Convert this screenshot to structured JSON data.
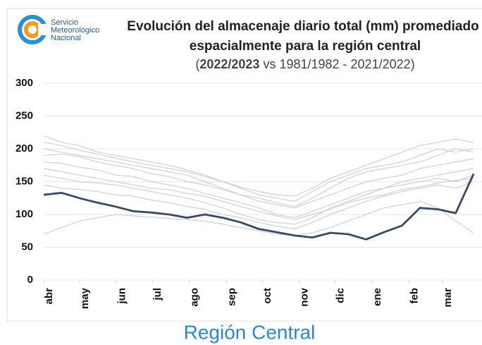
{
  "logo": [
    "Servicio",
    "Meteorológico",
    "Nacional"
  ],
  "footer": "Región Central",
  "chart_data": {
    "type": "line",
    "title": [
      "Evolución del almacenaje diario total (mm) promediado",
      "espacialmente para la región central"
    ],
    "subtitle": [
      "(",
      "2022/2023",
      " vs 1981/1982 - 2021/2022)"
    ],
    "x": [
      0,
      15,
      30,
      45,
      60,
      75,
      90,
      105,
      120,
      135,
      150,
      165,
      180,
      195,
      210,
      225,
      240,
      255,
      270,
      285,
      300,
      315,
      330,
      345,
      360
    ],
    "xlim": [
      0,
      367
    ],
    "xticks": [
      {
        "value": 0,
        "label": "abr"
      },
      {
        "value": 30,
        "label": "may"
      },
      {
        "value": 61,
        "label": "jun"
      },
      {
        "value": 91,
        "label": "jul"
      },
      {
        "value": 122,
        "label": "ago"
      },
      {
        "value": 153,
        "label": "sep"
      },
      {
        "value": 183,
        "label": "oct"
      },
      {
        "value": 214,
        "label": "nov"
      },
      {
        "value": 244,
        "label": "dic"
      },
      {
        "value": 275,
        "label": "ene"
      },
      {
        "value": 306,
        "label": "feb"
      },
      {
        "value": 334,
        "label": "mar"
      }
    ],
    "ylim": [
      0,
      300
    ],
    "yticks": [
      0,
      50,
      100,
      150,
      200,
      250,
      300
    ],
    "grid": true,
    "series": [
      {
        "color": "#d0d0d0",
        "values": [
          200,
          195,
          190,
          185,
          180,
          175,
          170,
          165,
          160,
          150,
          140,
          130,
          120,
          115,
          110,
          120,
          130,
          140,
          150,
          155,
          160,
          170,
          175,
          180,
          185
        ]
      },
      {
        "color": "#d0d0d0",
        "values": [
          180,
          178,
          172,
          168,
          160,
          158,
          150,
          145,
          140,
          132,
          125,
          118,
          110,
          100,
          95,
          105,
          115,
          125,
          135,
          140,
          150,
          155,
          160,
          165,
          170
        ]
      },
      {
        "color": "#d0d0d0",
        "values": [
          220,
          210,
          205,
          195,
          190,
          185,
          180,
          175,
          168,
          160,
          150,
          140,
          130,
          125,
          120,
          135,
          150,
          160,
          170,
          175,
          180,
          190,
          200,
          195,
          200
        ]
      },
      {
        "color": "#d0d0d0",
        "values": [
          160,
          155,
          150,
          148,
          145,
          140,
          135,
          130,
          125,
          118,
          110,
          100,
          92,
          88,
          85,
          95,
          110,
          120,
          130,
          140,
          145,
          150,
          155,
          150,
          160
        ]
      },
      {
        "color": "#d0d0d0",
        "values": [
          190,
          192,
          188,
          180,
          175,
          170,
          162,
          158,
          150,
          145,
          138,
          130,
          125,
          118,
          112,
          125,
          140,
          155,
          165,
          170,
          175,
          180,
          190,
          200,
          195
        ]
      },
      {
        "color": "#d0d0d0",
        "values": [
          170,
          165,
          160,
          155,
          150,
          145,
          140,
          138,
          132,
          128,
          120,
          112,
          105,
          98,
          92,
          100,
          108,
          118,
          125,
          130,
          138,
          142,
          148,
          152,
          155
        ]
      },
      {
        "color": "#d0d0d0",
        "values": [
          210,
          205,
          198,
          192,
          186,
          180,
          175,
          170,
          165,
          158,
          150,
          142,
          135,
          130,
          128,
          140,
          155,
          165,
          175,
          185,
          195,
          205,
          210,
          215,
          210
        ]
      },
      {
        "color": "#d0d0d0",
        "values": [
          145,
          140,
          138,
          135,
          130,
          128,
          122,
          118,
          112,
          108,
          100,
          95,
          88,
          82,
          78,
          88,
          100,
          110,
          120,
          128,
          135,
          140,
          145,
          140,
          150
        ]
      },
      {
        "color": "#d0d0d0",
        "values": [
          70,
          80,
          90,
          95,
          100,
          98,
          96,
          94,
          92,
          90,
          85,
          80,
          75,
          70,
          68,
          72,
          80,
          90,
          100,
          110,
          115,
          120,
          110,
          90,
          72
        ]
      },
      {
        "name": "2022/2023",
        "color": "#3b4a5e",
        "values": [
          130,
          133,
          125,
          118,
          112,
          105,
          103,
          100,
          95,
          100,
          95,
          88,
          78,
          73,
          68,
          65,
          72,
          70,
          62,
          73,
          83,
          110,
          108,
          102,
          162
        ]
      }
    ]
  }
}
